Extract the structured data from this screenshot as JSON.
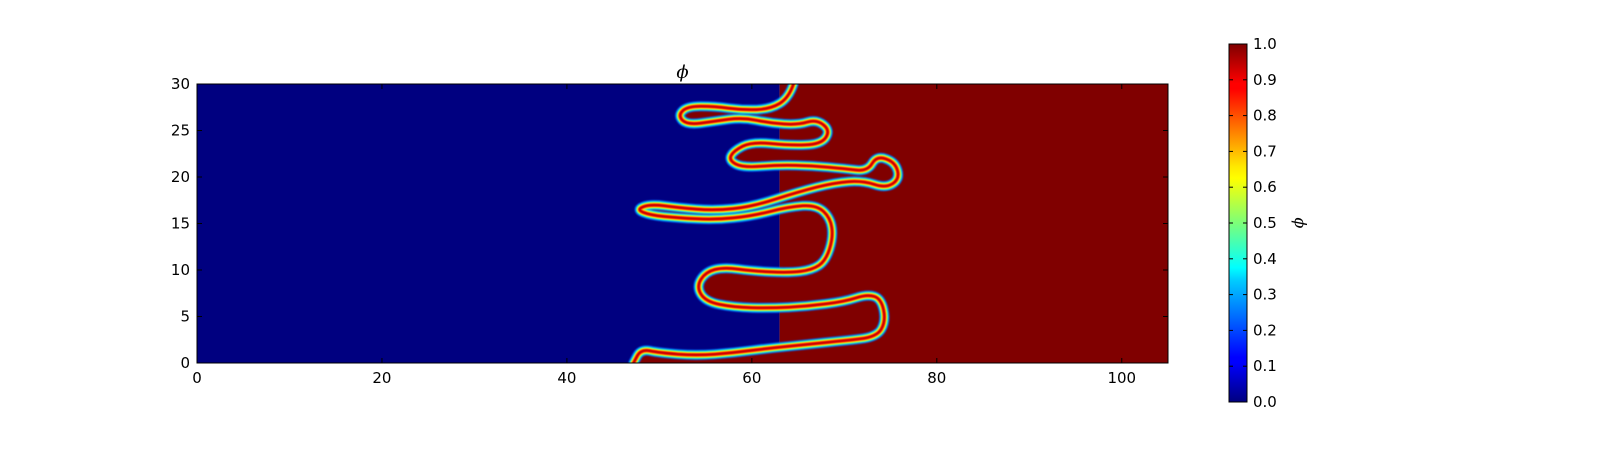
{
  "chart_data": [
    {
      "type": "heatmap",
      "title": "ϕ",
      "xlabel": "",
      "ylabel": "",
      "xlim": [
        0,
        105
      ],
      "ylim": [
        0,
        30
      ],
      "x_ticks": [
        0,
        20,
        40,
        60,
        80,
        100
      ],
      "y_ticks": [
        0,
        5,
        10,
        15,
        20,
        25,
        30
      ],
      "colormap": "jet",
      "value_range": [
        0.0,
        1.0
      ],
      "background_left_value": 0.0,
      "background_right_value": 1.0,
      "interface_contours": [
        {
          "level": 0.5,
          "description": "interface between phi=0 (blue, left) and phi=1 (red, right)",
          "points": [
            [
              64.5,
              30
            ],
            [
              64.0,
              28.5
            ],
            [
              62.0,
              27.3
            ],
            [
              59.0,
              27.2
            ],
            [
              56.0,
              27.6
            ],
            [
              53.0,
              27.6
            ],
            [
              52.0,
              26.6
            ],
            [
              53.0,
              25.6
            ],
            [
              56.0,
              26.0
            ],
            [
              59.0,
              26.4
            ],
            [
              62.0,
              25.8
            ],
            [
              65.0,
              25.6
            ],
            [
              67.0,
              26.2
            ],
            [
              68.5,
              25.0
            ],
            [
              67.5,
              23.5
            ],
            [
              64.0,
              23.4
            ],
            [
              60.0,
              23.8
            ],
            [
              58.0,
              22.8
            ],
            [
              57.5,
              21.8
            ],
            [
              59.0,
              21.0
            ],
            [
              63.0,
              21.3
            ],
            [
              66.5,
              21.2
            ],
            [
              70.0,
              20.9
            ],
            [
              72.5,
              20.6
            ],
            [
              73.5,
              22.3
            ],
            [
              75.5,
              21.6
            ],
            [
              76.0,
              19.8
            ],
            [
              74.5,
              18.8
            ],
            [
              72.0,
              19.6
            ],
            [
              69.0,
              19.4
            ],
            [
              65.0,
              18.4
            ],
            [
              60.0,
              16.8
            ],
            [
              56.0,
              16.4
            ],
            [
              52.0,
              16.7
            ],
            [
              49.0,
              17.1
            ],
            [
              47.5,
              16.5
            ],
            [
              49.0,
              15.9
            ],
            [
              52.0,
              15.6
            ],
            [
              56.0,
              15.4
            ],
            [
              60.0,
              15.8
            ],
            [
              64.0,
              16.8
            ],
            [
              67.0,
              17.0
            ],
            [
              68.5,
              15.6
            ],
            [
              68.8,
              13.5
            ],
            [
              68.0,
              11.0
            ],
            [
              66.5,
              10.0
            ],
            [
              64.0,
              9.7
            ],
            [
              60.0,
              9.9
            ],
            [
              57.0,
              10.3
            ],
            [
              55.0,
              9.8
            ],
            [
              54.0,
              8.2
            ],
            [
              55.0,
              6.6
            ],
            [
              58.0,
              6.0
            ],
            [
              62.0,
              5.9
            ],
            [
              66.0,
              6.1
            ],
            [
              70.0,
              6.6
            ],
            [
              72.5,
              7.4
            ],
            [
              74.0,
              6.9
            ],
            [
              74.5,
              4.5
            ],
            [
              73.5,
              2.8
            ],
            [
              70.0,
              2.4
            ],
            [
              66.0,
              2.0
            ],
            [
              62.0,
              1.6
            ],
            [
              58.0,
              1.1
            ],
            [
              54.0,
              0.8
            ],
            [
              50.0,
              1.1
            ],
            [
              48.0,
              1.5
            ],
            [
              47.2,
              0.0
            ]
          ]
        }
      ],
      "colorbar": {
        "label": "ϕ",
        "ticks": [
          "0.0",
          "0.1",
          "0.2",
          "0.3",
          "0.4",
          "0.5",
          "0.6",
          "0.7",
          "0.8",
          "0.9",
          "1.0"
        ],
        "range": [
          0.0,
          1.0
        ]
      }
    }
  ]
}
